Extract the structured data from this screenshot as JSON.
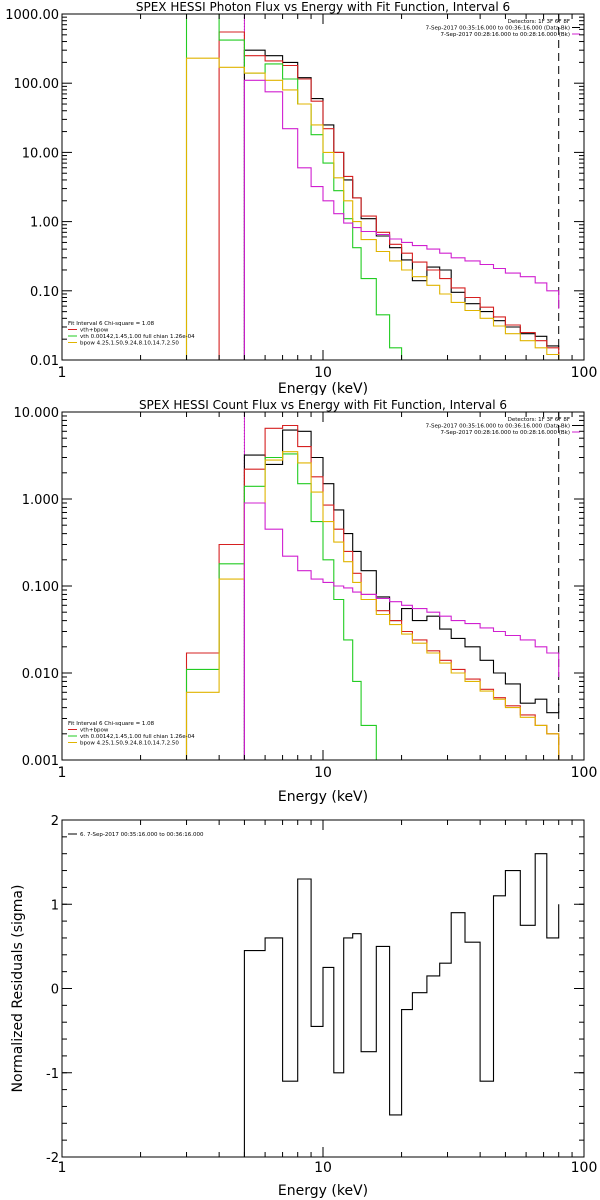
{
  "colors": {
    "data": "#000000",
    "total": "#d62020",
    "vth": "#22cc22",
    "bpow": "#e0b400",
    "bk": "#d020d0",
    "axis": "#000000"
  },
  "chart_data": [
    {
      "type": "line",
      "scale": "log-log",
      "title": "SPEX HESSI Photon Flux vs Energy with Fit Function, Interval 6",
      "xlabel": "Energy (keV)",
      "ylabel": "",
      "xlim": [
        1,
        100
      ],
      "ylim": [
        0.01,
        1000
      ],
      "xticks": [
        1,
        10,
        100
      ],
      "xtick_labels": [
        "1",
        "10",
        "100"
      ],
      "yticks": [
        0.01,
        0.1,
        1,
        10,
        100,
        1000
      ],
      "ytick_labels": [
        "0.01",
        "0.10",
        "1.00",
        "10.00",
        "100.00",
        "1000.00"
      ],
      "header_lines": [
        "Detectors: 1F 3F 6F 8F",
        "7-Sep-2017 00:35:16.000 to 00:36:16.000 (Data-Bk)",
        "7-Sep-2017 00:28:16.000 to 00:28:16.000 (Bk)"
      ],
      "header_colors": [
        "#000000",
        "#000000",
        "#d020d0"
      ],
      "legend_lines": [
        "Fit Interval 6   Chi-square = 1.08",
        "vth+bpow",
        "vth 0.00142,1.45,1.00  full chian 1.26e-04",
        "bpow 4.25,1.50,9.24,8.10,14.7,2.50"
      ],
      "legend_colors": [
        "#000000",
        "#d62020",
        "#22cc22",
        "#e0b400"
      ],
      "vlines": [
        {
          "x": 5.0,
          "style": "dotted",
          "color": "#000000"
        },
        {
          "x": 5.0,
          "style": "solid",
          "color": "#d020d0"
        },
        {
          "x": 80,
          "style": "dashed",
          "color": "#000000"
        }
      ],
      "x_edges": [
        3,
        4,
        5,
        6,
        7,
        8,
        9,
        10,
        11,
        12,
        13,
        14,
        16,
        18,
        20,
        22,
        25,
        28,
        31,
        35,
        40,
        45,
        50,
        57,
        65,
        72,
        80
      ],
      "series": [
        {
          "name": "Data-Bk",
          "color": "#000000",
          "start_index": 2,
          "values": [
            300,
            250,
            200,
            120,
            60,
            25,
            10,
            4,
            2.2,
            1.1,
            0.62,
            0.42,
            0.28,
            0.14,
            0.22,
            0.2,
            0.095,
            0.065,
            0.05,
            0.037,
            0.03,
            0.024,
            0.022,
            0.016,
            0.014
          ]
        },
        {
          "name": "vth+bpow",
          "color": "#d62020",
          "start_index": 1,
          "values": [
            550,
            250,
            210,
            180,
            115,
            55,
            22,
            10,
            4.5,
            2.2,
            1.2,
            0.7,
            0.47,
            0.35,
            0.26,
            0.2,
            0.15,
            0.11,
            0.08,
            0.058,
            0.042,
            0.032,
            0.025,
            0.019,
            0.015,
            0.012
          ]
        },
        {
          "name": "vth",
          "color": "#22cc22",
          "start_index": 0,
          "values": [
            1000,
            420,
            140,
            190,
            115,
            50,
            18,
            7,
            2.8,
            1.1,
            0.42,
            0.15,
            0.045,
            0.015
          ]
        },
        {
          "name": "bpow",
          "color": "#e0b400",
          "start_index": 0,
          "values": [
            230,
            170,
            140,
            110,
            80,
            50,
            25,
            10,
            4.3,
            2.0,
            1.0,
            0.55,
            0.37,
            0.27,
            0.2,
            0.16,
            0.12,
            0.09,
            0.068,
            0.052,
            0.04,
            0.031,
            0.024,
            0.019,
            0.015,
            0.012
          ]
        },
        {
          "name": "Bk",
          "color": "#d020d0",
          "start_index": 2,
          "values": [
            110,
            75,
            22,
            6,
            3.2,
            2.0,
            1.3,
            0.95,
            0.82,
            0.72,
            0.65,
            0.56,
            0.5,
            0.45,
            0.4,
            0.35,
            0.3,
            0.27,
            0.24,
            0.21,
            0.18,
            0.16,
            0.13,
            0.1,
            0.055
          ]
        }
      ]
    },
    {
      "type": "line",
      "scale": "log-log",
      "title": "SPEX HESSI Count Flux vs Energy with Fit Function, Interval 6",
      "xlabel": "Energy (keV)",
      "ylabel": "",
      "xlim": [
        1,
        100
      ],
      "ylim": [
        0.001,
        10
      ],
      "xticks": [
        1,
        10,
        100
      ],
      "xtick_labels": [
        "1",
        "10",
        "100"
      ],
      "yticks": [
        0.001,
        0.01,
        0.1,
        1,
        10
      ],
      "ytick_labels": [
        "0.001",
        "0.010",
        "0.100",
        "1.000",
        "10.000"
      ],
      "header_lines": [
        "Detectors: 1F 3F 6F 8F",
        "7-Sep-2017 00:35:16.000 to 00:36:16.000 (Data-Bk)",
        "7-Sep-2017 00:28:16.000 to 00:28:16.000 (Bk)"
      ],
      "header_colors": [
        "#000000",
        "#000000",
        "#d020d0"
      ],
      "legend_lines": [
        "Fit Interval 6   Chi-square = 1.08",
        "vth+bpow",
        "vth 0.00142,1.45,1.00  full chian 1.26e-04",
        "bpow 4.25,1.50,9.24,8.10,14.7,2.50"
      ],
      "legend_colors": [
        "#000000",
        "#d62020",
        "#22cc22",
        "#e0b400"
      ],
      "vlines": [
        {
          "x": 5.0,
          "style": "dotted",
          "color": "#000000"
        },
        {
          "x": 5.0,
          "style": "solid",
          "color": "#d020d0"
        },
        {
          "x": 80,
          "style": "dashed",
          "color": "#000000"
        }
      ],
      "x_edges": [
        3,
        4,
        5,
        6,
        7,
        8,
        9,
        10,
        11,
        12,
        13,
        14,
        16,
        18,
        20,
        22,
        25,
        28,
        31,
        35,
        40,
        45,
        50,
        57,
        65,
        72,
        80
      ],
      "series": [
        {
          "name": "Data-Bk",
          "color": "#000000",
          "start_index": 2,
          "values": [
            3.2,
            2.5,
            6.2,
            6.0,
            3.0,
            1.5,
            0.75,
            0.4,
            0.25,
            0.15,
            0.075,
            0.04,
            0.055,
            0.04,
            0.045,
            0.032,
            0.025,
            0.02,
            0.014,
            0.01,
            0.0075,
            0.0045,
            0.005,
            0.0035,
            0.0045
          ]
        },
        {
          "name": "vth+bpow",
          "color": "#d62020",
          "start_index": 0,
          "values": [
            0.017,
            0.3,
            2.2,
            6.5,
            7.0,
            4.0,
            1.8,
            0.85,
            0.45,
            0.25,
            0.14,
            0.08,
            0.052,
            0.04,
            0.03,
            0.024,
            0.018,
            0.014,
            0.011,
            0.0085,
            0.0065,
            0.0052,
            0.0042,
            0.0033,
            0.0025,
            0.002
          ]
        },
        {
          "name": "vth",
          "color": "#22cc22",
          "start_index": 0,
          "values": [
            0.011,
            0.18,
            1.4,
            3.0,
            3.3,
            1.5,
            0.55,
            0.2,
            0.07,
            0.024,
            0.008,
            0.0025,
            0.001
          ]
        },
        {
          "name": "bpow",
          "color": "#e0b400",
          "start_index": 0,
          "values": [
            0.006,
            0.12,
            0.9,
            2.8,
            3.5,
            2.6,
            1.2,
            0.55,
            0.32,
            0.19,
            0.11,
            0.07,
            0.047,
            0.036,
            0.028,
            0.022,
            0.017,
            0.013,
            0.01,
            0.008,
            0.0062,
            0.005,
            0.004,
            0.0031,
            0.0025,
            0.002
          ]
        },
        {
          "name": "Bk",
          "color": "#d020d0",
          "start_index": 2,
          "values": [
            0.9,
            0.45,
            0.22,
            0.15,
            0.12,
            0.11,
            0.1,
            0.095,
            0.085,
            0.08,
            0.072,
            0.066,
            0.06,
            0.055,
            0.05,
            0.045,
            0.04,
            0.037,
            0.033,
            0.03,
            0.027,
            0.024,
            0.02,
            0.017,
            0.009
          ]
        }
      ]
    },
    {
      "type": "line",
      "scale": "log-linear",
      "title": "",
      "xlabel": "Energy (keV)",
      "ylabel": "Normalized Residuals (sigma)",
      "xlim": [
        1,
        100
      ],
      "ylim": [
        -2,
        2
      ],
      "xticks": [
        1,
        10,
        100
      ],
      "xtick_labels": [
        "1",
        "10",
        "100"
      ],
      "yticks": [
        -2,
        -1,
        0,
        1,
        2
      ],
      "ytick_labels": [
        "-2",
        "-1",
        "0",
        "1",
        "2"
      ],
      "header_lines": [],
      "legend_lines": [
        "6.  7-Sep-2017 00:35:16.000 to 00:36:16.000"
      ],
      "legend_colors": [
        "#000000"
      ],
      "vlines": [],
      "x_edges": [
        5,
        6,
        7,
        8,
        9,
        10,
        11,
        12,
        13,
        14,
        16,
        18,
        20,
        22,
        25,
        28,
        31,
        35,
        40,
        45,
        50,
        57,
        65,
        72,
        80
      ],
      "series": [
        {
          "name": "6.  7-Sep-2017 00:35:16.000 to 00:36:16.000",
          "color": "#000000",
          "start_index": 0,
          "values": [
            0.45,
            0.6,
            -1.1,
            1.3,
            -0.45,
            0.25,
            -1.0,
            0.6,
            0.65,
            -0.75,
            0.5,
            -1.5,
            -0.25,
            -0.05,
            0.15,
            0.3,
            0.9,
            0.55,
            -1.1,
            1.1,
            1.4,
            0.75,
            1.6,
            0.6,
            1.0
          ]
        }
      ]
    }
  ]
}
